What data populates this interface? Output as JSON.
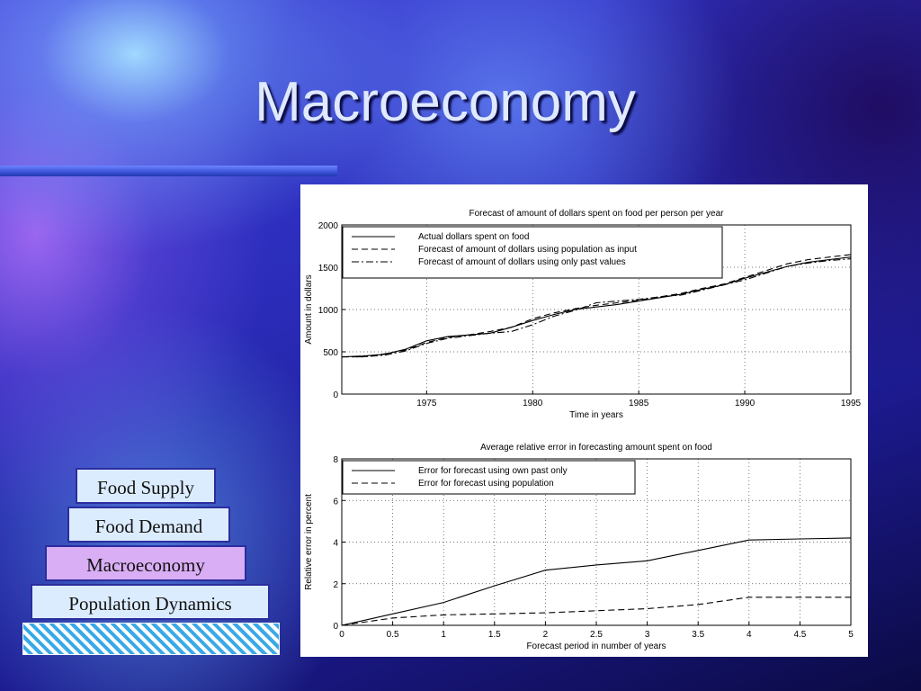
{
  "slide": {
    "title": "Macroeconomy",
    "pyramid": [
      "Food Supply",
      "Food Demand",
      "Macroeconomy",
      "Population Dynamics"
    ],
    "highlight_color": "#d9aef5",
    "block_color": "#dcecff"
  },
  "chart_data": [
    {
      "type": "line",
      "title": "Forecast of amount of dollars spent on food per person per year",
      "xlabel": "Time in years",
      "ylabel": "Amount in dollars",
      "xlim": [
        1971,
        1995
      ],
      "ylim": [
        0,
        2000
      ],
      "xticks": [
        1975,
        1980,
        1985,
        1990,
        1995
      ],
      "xtick_labels": [
        "1975",
        "1980",
        "1985",
        "1990",
        "1995"
      ],
      "yticks": [
        0,
        500,
        1000,
        1500,
        2000
      ],
      "ytick_labels": [
        "0",
        "500",
        "1000",
        "1500",
        "2000"
      ],
      "grid": true,
      "legend_position": "top-left",
      "series": [
        {
          "name": "Actual dollars spent on food",
          "style": "solid",
          "x": [
            1971,
            1972,
            1973,
            1974,
            1975,
            1976,
            1977,
            1978,
            1979,
            1980,
            1981,
            1982,
            1983,
            1984,
            1985,
            1986,
            1987,
            1988,
            1989,
            1990,
            1991,
            1992,
            1993,
            1994,
            1995
          ],
          "y": [
            440,
            450,
            470,
            530,
            630,
            680,
            700,
            720,
            790,
            870,
            940,
            1000,
            1030,
            1060,
            1100,
            1140,
            1180,
            1240,
            1290,
            1370,
            1440,
            1510,
            1560,
            1590,
            1620
          ]
        },
        {
          "name": "Forecast of amount of dollars using population as input",
          "style": "dashed",
          "x": [
            1971,
            1972,
            1973,
            1974,
            1975,
            1976,
            1977,
            1978,
            1979,
            1980,
            1981,
            1982,
            1983,
            1984,
            1985,
            1986,
            1987,
            1988,
            1989,
            1990,
            1991,
            1992,
            1993,
            1994,
            1995
          ],
          "y": [
            440,
            440,
            475,
            520,
            610,
            670,
            700,
            740,
            790,
            890,
            960,
            1010,
            1050,
            1080,
            1110,
            1150,
            1190,
            1250,
            1300,
            1380,
            1460,
            1540,
            1590,
            1620,
            1650
          ]
        },
        {
          "name": "Forecast of amount of dollars using only past values",
          "style": "dashdot",
          "x": [
            1971,
            1972,
            1973,
            1974,
            1975,
            1976,
            1977,
            1978,
            1979,
            1980,
            1981,
            1982,
            1983,
            1984,
            1985,
            1986,
            1987,
            1988,
            1989,
            1990,
            1991,
            1992,
            1993,
            1994,
            1995
          ],
          "y": [
            440,
            440,
            460,
            510,
            600,
            660,
            690,
            720,
            740,
            820,
            920,
            990,
            1080,
            1100,
            1120,
            1150,
            1170,
            1230,
            1290,
            1350,
            1430,
            1510,
            1550,
            1580,
            1600
          ]
        }
      ]
    },
    {
      "type": "line",
      "title": "Average relative error in forecasting amount spent on food",
      "xlabel": "Forecast period in number of years",
      "ylabel": "Relative error in percent",
      "xlim": [
        0,
        5
      ],
      "ylim": [
        0,
        8
      ],
      "xticks": [
        0,
        0.5,
        1,
        1.5,
        2,
        2.5,
        3,
        3.5,
        4,
        4.5,
        5
      ],
      "xtick_labels": [
        "0",
        "0.5",
        "1",
        "1.5",
        "2",
        "2.5",
        "3",
        "3.5",
        "4",
        "4.5",
        "5"
      ],
      "yticks": [
        0,
        2,
        4,
        6,
        8
      ],
      "ytick_labels": [
        "0",
        "2",
        "4",
        "6",
        "8"
      ],
      "grid": true,
      "legend_position": "top-left",
      "series": [
        {
          "name": "Error for forecast using own past only",
          "style": "solid",
          "x": [
            0,
            0.5,
            1,
            1.5,
            2,
            2.5,
            3,
            3.5,
            4,
            4.5,
            5
          ],
          "y": [
            0,
            0.55,
            1.1,
            1.9,
            2.65,
            2.9,
            3.1,
            3.6,
            4.1,
            4.15,
            4.2
          ]
        },
        {
          "name": "Error for forecast using population",
          "style": "dashed",
          "x": [
            0,
            0.5,
            1,
            1.5,
            2,
            2.5,
            3,
            3.5,
            4,
            4.5,
            5
          ],
          "y": [
            0,
            0.35,
            0.5,
            0.55,
            0.6,
            0.7,
            0.8,
            1.0,
            1.35,
            1.35,
            1.35
          ]
        }
      ]
    }
  ]
}
